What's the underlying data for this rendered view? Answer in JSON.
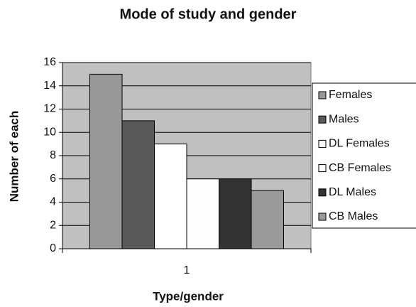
{
  "chart_data": {
    "type": "bar",
    "title": "Mode of study and gender",
    "x_label": "Type/gender",
    "y_label": "Number of each",
    "categories": [
      "1"
    ],
    "series": [
      {
        "name": "Females",
        "color": "#999999",
        "values": [
          15
        ]
      },
      {
        "name": "Males",
        "color": "#595959",
        "values": [
          11
        ]
      },
      {
        "name": "DL Females",
        "color": "#ffffff",
        "values": [
          9
        ]
      },
      {
        "name": "CB Females",
        "color": "#fdfdfd",
        "values": [
          6
        ]
      },
      {
        "name": "DL Males",
        "color": "#333333",
        "values": [
          6
        ]
      },
      {
        "name": "CB Males",
        "color": "#9a9a9a",
        "values": [
          5
        ]
      }
    ],
    "ylim": [
      0,
      16
    ],
    "yticks": [
      0,
      2,
      4,
      6,
      8,
      10,
      12,
      14,
      16
    ],
    "grid": true,
    "plot_background": "#c0c0c0",
    "legend": "right"
  }
}
